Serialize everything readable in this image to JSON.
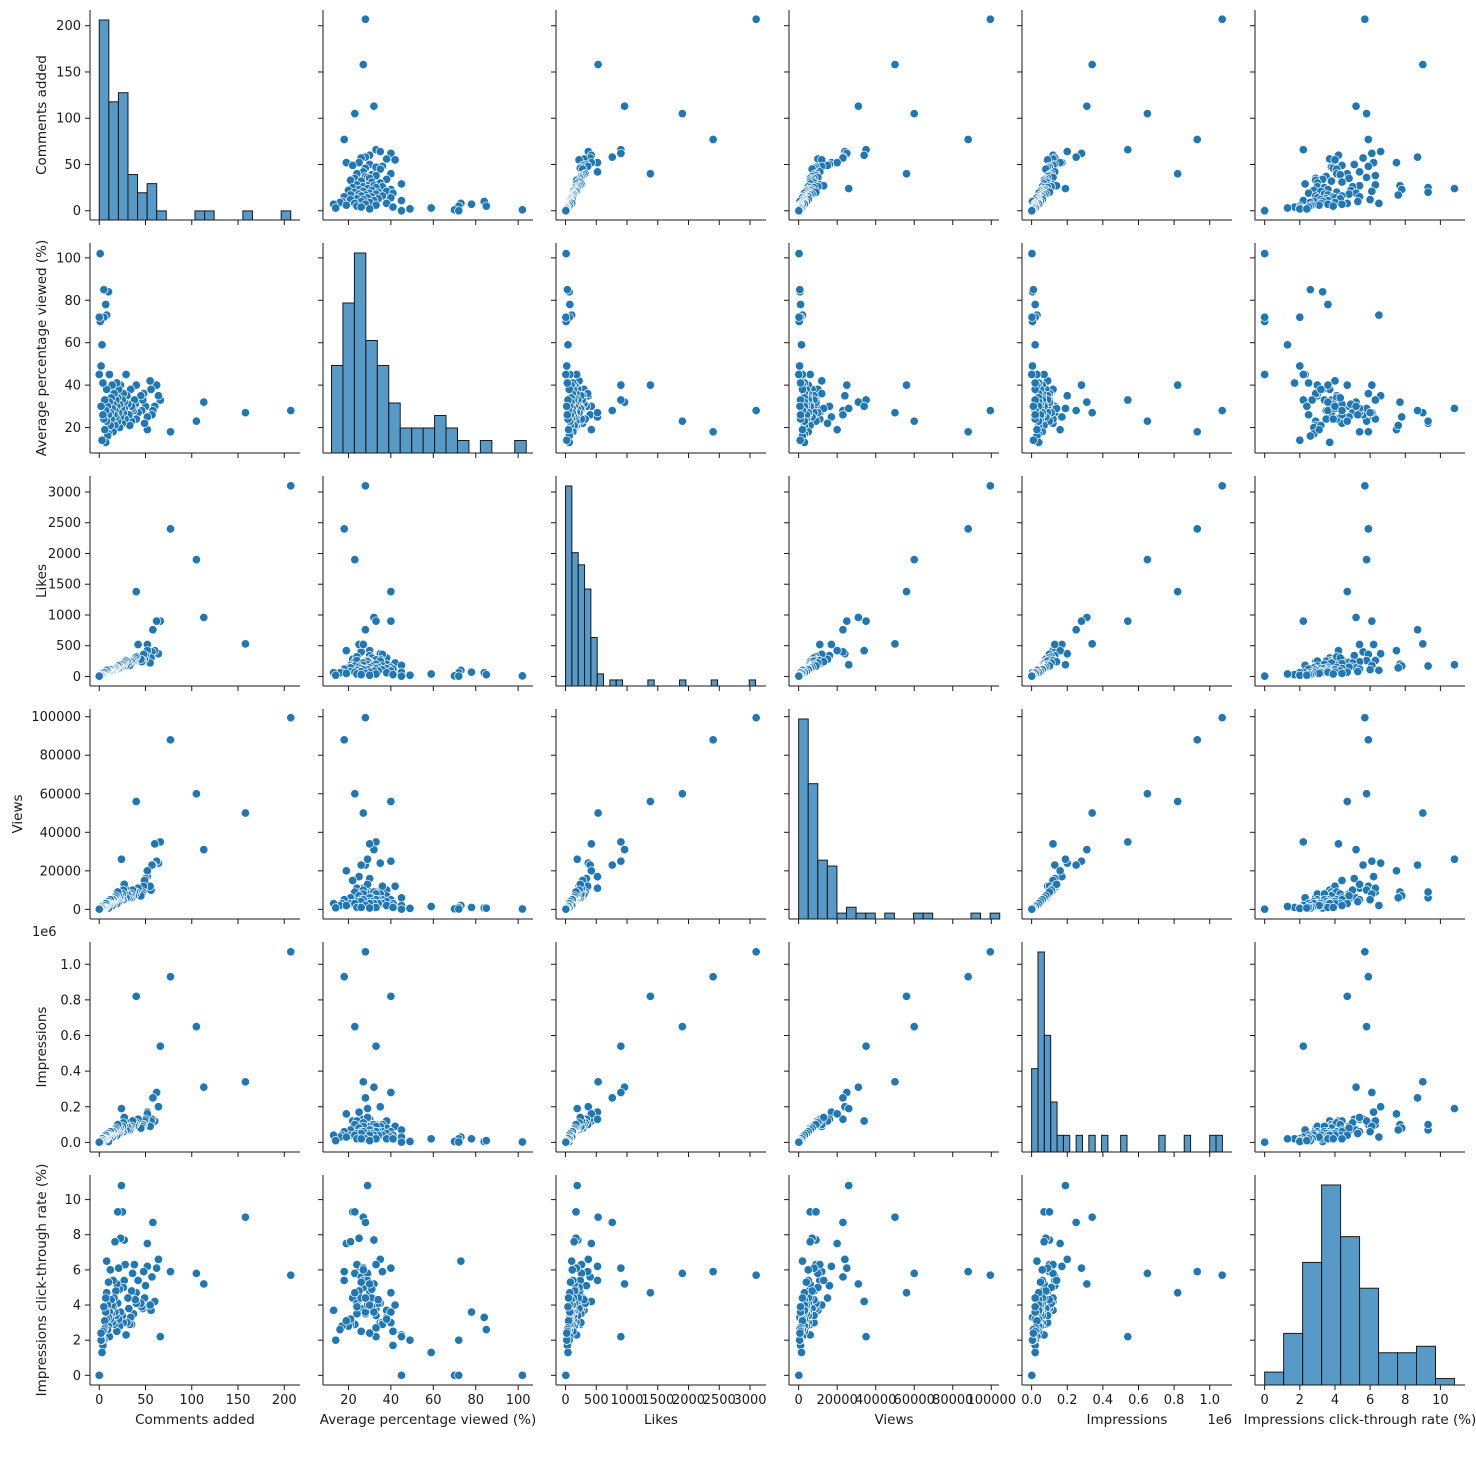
{
  "chart_data": {
    "type": "scatter",
    "kind": "pairplot",
    "variables": [
      {
        "name": "Comments added",
        "lim": [
          -10,
          217
        ],
        "ticks": [
          0,
          50,
          100,
          150,
          200
        ]
      },
      {
        "name": "Average percentage viewed (%)",
        "lim": [
          8,
          107
        ],
        "ticks": [
          20,
          40,
          60,
          80,
          100
        ]
      },
      {
        "name": "Likes",
        "lim": [
          -155,
          3260
        ],
        "ticks": [
          0,
          500,
          1000,
          1500,
          2000,
          2500,
          3000
        ]
      },
      {
        "name": "Views",
        "lim": [
          -5000,
          104000
        ],
        "ticks": [
          0,
          20000,
          40000,
          60000,
          80000,
          100000
        ]
      },
      {
        "name": "Impressions",
        "lim": [
          -0.054,
          1.125
        ],
        "ticks": [
          0.0,
          0.2,
          0.4,
          0.6,
          0.8,
          1.0
        ],
        "tick_labels": [
          "0.0",
          "0.2",
          "0.4",
          "0.6",
          "0.8",
          "1.0"
        ],
        "offset_text": "1e6"
      },
      {
        "name": "Impressions click-through rate (%)",
        "lim": [
          -0.55,
          11.4
        ],
        "ticks": [
          0,
          2,
          4,
          6,
          8,
          10
        ]
      }
    ],
    "points": [
      [
        207,
        28,
        3100,
        99500,
        1.07,
        5.7
      ],
      [
        158,
        27,
        530,
        50000,
        0.34,
        9.0
      ],
      [
        113,
        32,
        960,
        31000,
        0.31,
        5.2
      ],
      [
        105,
        23,
        1900,
        60000,
        0.65,
        5.8
      ],
      [
        77,
        18,
        2400,
        88000,
        0.93,
        5.9
      ],
      [
        66,
        33,
        900,
        35000,
        0.54,
        2.2
      ],
      [
        64,
        35,
        370,
        24000,
        0.2,
        6.6
      ],
      [
        62,
        40,
        900,
        25000,
        0.28,
        6.1
      ],
      [
        60,
        30,
        420,
        34000,
        0.12,
        4.2
      ],
      [
        58,
        28,
        760,
        23000,
        0.25,
        8.7
      ],
      [
        57,
        26,
        400,
        23000,
        0.13,
        5.6
      ],
      [
        56,
        38,
        300,
        10000,
        0.12,
        3.7
      ],
      [
        55,
        42,
        220,
        12000,
        0.09,
        4.0
      ],
      [
        52,
        25,
        520,
        17000,
        0.17,
        6.2
      ],
      [
        52,
        19,
        420,
        20000,
        0.16,
        7.5
      ],
      [
        50,
        30,
        340,
        16000,
        0.13,
        5.1
      ],
      [
        49,
        22,
        280,
        15000,
        0.12,
        4.4
      ],
      [
        48,
        36,
        360,
        12000,
        0.1,
        5.9
      ],
      [
        47,
        33,
        260,
        9000,
        0.1,
        3.8
      ],
      [
        46,
        28,
        240,
        8000,
        0.09,
        3.9
      ],
      [
        45,
        35,
        280,
        7000,
        0.08,
        4.1
      ],
      [
        42,
        27,
        520,
        11000,
        0.13,
        5.4
      ],
      [
        40,
        40,
        1380,
        56000,
        0.82,
        4.7
      ],
      [
        40,
        24,
        320,
        9000,
        0.11,
        4.1
      ],
      [
        39,
        31,
        300,
        8000,
        0.1,
        4.3
      ],
      [
        38,
        33,
        270,
        9000,
        0.1,
        6.3
      ],
      [
        37,
        28,
        250,
        7000,
        0.09,
        3.5
      ],
      [
        36,
        29,
        260,
        10000,
        0.12,
        5.8
      ],
      [
        35,
        23,
        240,
        6000,
        0.08,
        2.9
      ],
      [
        35,
        30,
        230,
        8000,
        0.09,
        4.8
      ],
      [
        34,
        38,
        200,
        7000,
        0.08,
        3.3
      ],
      [
        33,
        21,
        180,
        6000,
        0.07,
        2.9
      ],
      [
        32,
        26,
        220,
        7000,
        0.08,
        3.8
      ],
      [
        31,
        31,
        210,
        6000,
        0.07,
        4.4
      ],
      [
        30,
        35,
        250,
        8000,
        0.09,
        3.0
      ],
      [
        29,
        45,
        180,
        6000,
        0.07,
        2.3
      ],
      [
        28,
        24,
        260,
        11000,
        0.12,
        6.3
      ],
      [
        27,
        29,
        240,
        13000,
        0.14,
        5.4
      ],
      [
        27,
        32,
        200,
        9000,
        0.1,
        7.7
      ],
      [
        26,
        27,
        220,
        10000,
        0.11,
        5.0
      ],
      [
        26,
        36,
        170,
        5000,
        0.06,
        3.0
      ],
      [
        25,
        22,
        160,
        6000,
        0.07,
        9.3
      ],
      [
        25,
        33,
        200,
        8000,
        0.09,
        3.4
      ],
      [
        24,
        29,
        190,
        26000,
        0.19,
        10.8
      ],
      [
        23,
        25,
        170,
        7000,
        0.08,
        7.8
      ],
      [
        23,
        40,
        150,
        5000,
        0.06,
        3.6
      ],
      [
        22,
        31,
        160,
        6000,
        0.07,
        4.9
      ],
      [
        22,
        20,
        140,
        4000,
        0.05,
        2.8
      ],
      [
        21,
        27,
        180,
        8000,
        0.09,
        6.1
      ],
      [
        21,
        38,
        130,
        4000,
        0.05,
        3.2
      ],
      [
        20,
        34,
        150,
        5000,
        0.06,
        4.1
      ],
      [
        20,
        23,
        170,
        9000,
        0.1,
        9.3
      ],
      [
        19,
        30,
        140,
        6000,
        0.07,
        5.2
      ],
      [
        19,
        41,
        120,
        3000,
        0.04,
        2.5
      ],
      [
        18,
        25,
        150,
        7000,
        0.08,
        4.8
      ],
      [
        18,
        33,
        130,
        5000,
        0.06,
        3.4
      ],
      [
        17,
        28,
        120,
        4000,
        0.05,
        3.6
      ],
      [
        17,
        21,
        140,
        6000,
        0.07,
        7.6
      ],
      [
        16,
        36,
        110,
        3000,
        0.04,
        2.9
      ],
      [
        16,
        26,
        130,
        5000,
        0.06,
        4.4
      ],
      [
        15,
        31,
        100,
        4000,
        0.05,
        3.9
      ],
      [
        15,
        18,
        120,
        5000,
        0.06,
        5.4
      ],
      [
        14,
        29,
        110,
        4000,
        0.05,
        4.0
      ],
      [
        14,
        40,
        90,
        2000,
        0.03,
        3.0
      ],
      [
        13,
        24,
        100,
        4000,
        0.05,
        3.5
      ],
      [
        13,
        34,
        90,
        3000,
        0.04,
        4.3
      ],
      [
        12,
        27,
        110,
        5000,
        0.06,
        6.0
      ],
      [
        12,
        21,
        80,
        3000,
        0.04,
        3.2
      ],
      [
        11,
        32,
        90,
        3000,
        0.04,
        3.6
      ],
      [
        11,
        45,
        70,
        2000,
        0.03,
        2.2
      ],
      [
        10,
        26,
        80,
        4000,
        0.05,
        5.3
      ],
      [
        10,
        17,
        70,
        3000,
        0.04,
        2.8
      ],
      [
        10,
        84,
        60,
        700,
        0.005,
        3.3
      ],
      [
        9,
        30,
        70,
        3000,
        0.04,
        4.0
      ],
      [
        9,
        16,
        60,
        2000,
        0.03,
        2.6
      ],
      [
        8,
        38,
        60,
        2000,
        0.02,
        3.2
      ],
      [
        8,
        23,
        70,
        3000,
        0.04,
        4.7
      ],
      [
        8,
        73,
        100,
        2000,
        0.03,
        6.5
      ],
      [
        7,
        28,
        50,
        2000,
        0.02,
        4.4
      ],
      [
        7,
        13,
        60,
        3000,
        0.04,
        3.7
      ],
      [
        7,
        78,
        70,
        1000,
        0.02,
        3.6
      ],
      [
        6,
        19,
        50,
        2000,
        0.03,
        3.1
      ],
      [
        6,
        33,
        40,
        1000,
        0.02,
        2.7
      ],
      [
        5,
        24,
        40,
        1000,
        0.02,
        3.9
      ],
      [
        5,
        85,
        30,
        600,
        0.01,
        2.6
      ],
      [
        5,
        72,
        60,
        1000,
        0.02,
        2.0
      ],
      [
        4,
        41,
        30,
        1000,
        0.02,
        1.7
      ],
      [
        4,
        26,
        30,
        1000,
        0.02,
        2.5
      ],
      [
        3,
        59,
        40,
        1500,
        0.02,
        1.3
      ],
      [
        3,
        14,
        20,
        800,
        0.01,
        2.0
      ],
      [
        2,
        49,
        20,
        500,
        0.005,
        2.0
      ],
      [
        2,
        30,
        20,
        700,
        0.01,
        2.4
      ],
      [
        1,
        70,
        10,
        300,
        0.005,
        0.0
      ],
      [
        1,
        102,
        10,
        200,
        0.002,
        0.0
      ],
      [
        0,
        72,
        5,
        200,
        0.002,
        0.0
      ],
      [
        0,
        45,
        5,
        100,
        0.001,
        0.0
      ]
    ],
    "histograms": [
      {
        "bin_start": 0,
        "bin_width": 10.35,
        "counts": [
          22,
          13,
          14,
          5,
          3,
          4,
          1,
          0,
          0,
          0,
          1,
          1,
          0,
          0,
          0,
          1,
          0,
          0,
          0,
          1
        ],
        "count_max": 22
      },
      {
        "bin_start": 12,
        "bin_width": 5.4,
        "counts": [
          7,
          12,
          16,
          9,
          7,
          4,
          2,
          2,
          2,
          3,
          2,
          1,
          0,
          1,
          0,
          0,
          1
        ],
        "count_max": 16
      },
      {
        "bin_start": 0,
        "bin_width": 103,
        "counts": [
          33,
          22,
          20,
          16,
          8,
          2,
          0,
          1,
          1,
          0,
          0,
          0,
          0,
          1,
          0,
          0,
          0,
          0,
          1,
          0,
          0,
          0,
          0,
          1,
          0,
          0,
          0,
          0,
          0,
          1
        ],
        "count_max": 33
      },
      {
        "bin_start": 0,
        "bin_width": 4970,
        "counts": [
          34,
          23,
          10,
          9,
          1,
          2,
          1,
          1,
          0,
          1,
          0,
          0,
          1,
          1,
          0,
          0,
          0,
          0,
          1,
          0,
          1
        ],
        "count_max": 34
      },
      {
        "bin_start": 0,
        "bin_width": 0.0357,
        "counts": [
          5,
          12,
          7,
          3,
          1,
          1,
          0,
          1,
          0,
          1,
          0,
          1,
          0,
          0,
          1,
          0,
          0,
          0,
          0,
          0,
          1,
          0,
          0,
          0,
          1,
          0,
          0,
          0,
          1,
          1
        ],
        "count_max": 12
      },
      {
        "bin_start": 0,
        "bin_width": 1.08,
        "counts": [
          2,
          8,
          19,
          31,
          23,
          15,
          5,
          5,
          6,
          1
        ],
        "count_max": 31
      }
    ]
  }
}
